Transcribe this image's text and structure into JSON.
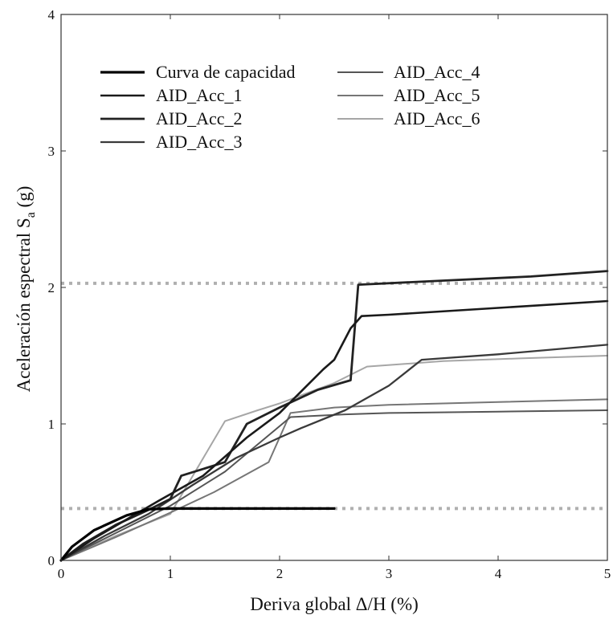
{
  "chart_data": {
    "type": "line",
    "title": "",
    "xlabel": "Deriva global Δ/H (%)",
    "ylabel_main": "Aceleración espectral S",
    "ylabel_sub": "a",
    "ylabel_unit": " (g)",
    "xlim": [
      0,
      5
    ],
    "ylim": [
      0,
      4
    ],
    "x_ticks": [
      "0",
      "1",
      "2",
      "3",
      "4",
      "5"
    ],
    "y_ticks": [
      "0",
      "1",
      "2",
      "3",
      "4"
    ],
    "grid": false,
    "legend_position": "top-left",
    "reference_lines": [
      {
        "orientation": "horizontal",
        "y": 2.03,
        "style": "dotted",
        "color": "#b0b0b0"
      },
      {
        "orientation": "horizontal",
        "y": 0.38,
        "style": "dotted",
        "color": "#b0b0b0"
      }
    ],
    "series": [
      {
        "name": "Curva de capacidad",
        "color": "#000000",
        "width": 3.2,
        "points": [
          [
            0,
            0
          ],
          [
            0.1,
            0.1
          ],
          [
            0.3,
            0.22
          ],
          [
            0.6,
            0.33
          ],
          [
            0.8,
            0.375
          ],
          [
            1.0,
            0.38
          ],
          [
            1.5,
            0.38
          ],
          [
            2.0,
            0.38
          ],
          [
            2.5,
            0.38
          ]
        ]
      },
      {
        "name": "AID_Acc_1",
        "color": "#1a1a1a",
        "width": 2.6,
        "points": [
          [
            0,
            0
          ],
          [
            0.3,
            0.16
          ],
          [
            0.6,
            0.3
          ],
          [
            0.9,
            0.44
          ],
          [
            1.3,
            0.62
          ],
          [
            1.7,
            0.9
          ],
          [
            2.0,
            1.08
          ],
          [
            2.4,
            1.4
          ],
          [
            2.5,
            1.47
          ],
          [
            2.65,
            1.7
          ],
          [
            2.75,
            1.79
          ],
          [
            3.0,
            1.8
          ],
          [
            4.0,
            1.85
          ],
          [
            5.0,
            1.9
          ]
        ]
      },
      {
        "name": "AID_Acc_2",
        "color": "#222222",
        "width": 2.8,
        "points": [
          [
            0,
            0
          ],
          [
            0.2,
            0.12
          ],
          [
            0.5,
            0.26
          ],
          [
            0.8,
            0.37
          ],
          [
            1.0,
            0.45
          ],
          [
            1.1,
            0.62
          ],
          [
            1.5,
            0.72
          ],
          [
            1.7,
            1.0
          ],
          [
            2.0,
            1.12
          ],
          [
            2.35,
            1.25
          ],
          [
            2.65,
            1.32
          ],
          [
            2.72,
            2.02
          ],
          [
            3.5,
            2.05
          ],
          [
            4.3,
            2.08
          ],
          [
            5.0,
            2.12
          ]
        ]
      },
      {
        "name": "AID_Acc_3",
        "color": "#3a3a3a",
        "width": 2.3,
        "points": [
          [
            0,
            0
          ],
          [
            0.4,
            0.18
          ],
          [
            0.8,
            0.34
          ],
          [
            1.2,
            0.55
          ],
          [
            1.6,
            0.75
          ],
          [
            2.0,
            0.9
          ],
          [
            2.2,
            0.97
          ],
          [
            2.6,
            1.1
          ],
          [
            3.0,
            1.28
          ],
          [
            3.3,
            1.47
          ],
          [
            4.0,
            1.51
          ],
          [
            5.0,
            1.58
          ]
        ]
      },
      {
        "name": "AID_Acc_4",
        "color": "#555555",
        "width": 2.0,
        "points": [
          [
            0,
            0
          ],
          [
            0.5,
            0.2
          ],
          [
            1.0,
            0.4
          ],
          [
            1.5,
            0.65
          ],
          [
            2.1,
            1.05
          ],
          [
            2.6,
            1.07
          ],
          [
            3.0,
            1.08
          ],
          [
            4.0,
            1.09
          ],
          [
            5.0,
            1.1
          ]
        ]
      },
      {
        "name": "AID_Acc_5",
        "color": "#767676",
        "width": 2.0,
        "points": [
          [
            0,
            0
          ],
          [
            0.5,
            0.17
          ],
          [
            1.0,
            0.35
          ],
          [
            1.4,
            0.5
          ],
          [
            1.9,
            0.72
          ],
          [
            2.1,
            1.08
          ],
          [
            2.5,
            1.12
          ],
          [
            3.0,
            1.14
          ],
          [
            4.0,
            1.16
          ],
          [
            5.0,
            1.18
          ]
        ]
      },
      {
        "name": "AID_Acc_6",
        "color": "#a6a6a6",
        "width": 2.0,
        "points": [
          [
            0,
            0
          ],
          [
            0.5,
            0.18
          ],
          [
            1.0,
            0.34
          ],
          [
            1.5,
            1.02
          ],
          [
            1.8,
            1.1
          ],
          [
            2.0,
            1.15
          ],
          [
            2.5,
            1.3
          ],
          [
            2.8,
            1.42
          ],
          [
            3.5,
            1.46
          ],
          [
            4.2,
            1.48
          ],
          [
            5.0,
            1.5
          ]
        ]
      }
    ]
  }
}
